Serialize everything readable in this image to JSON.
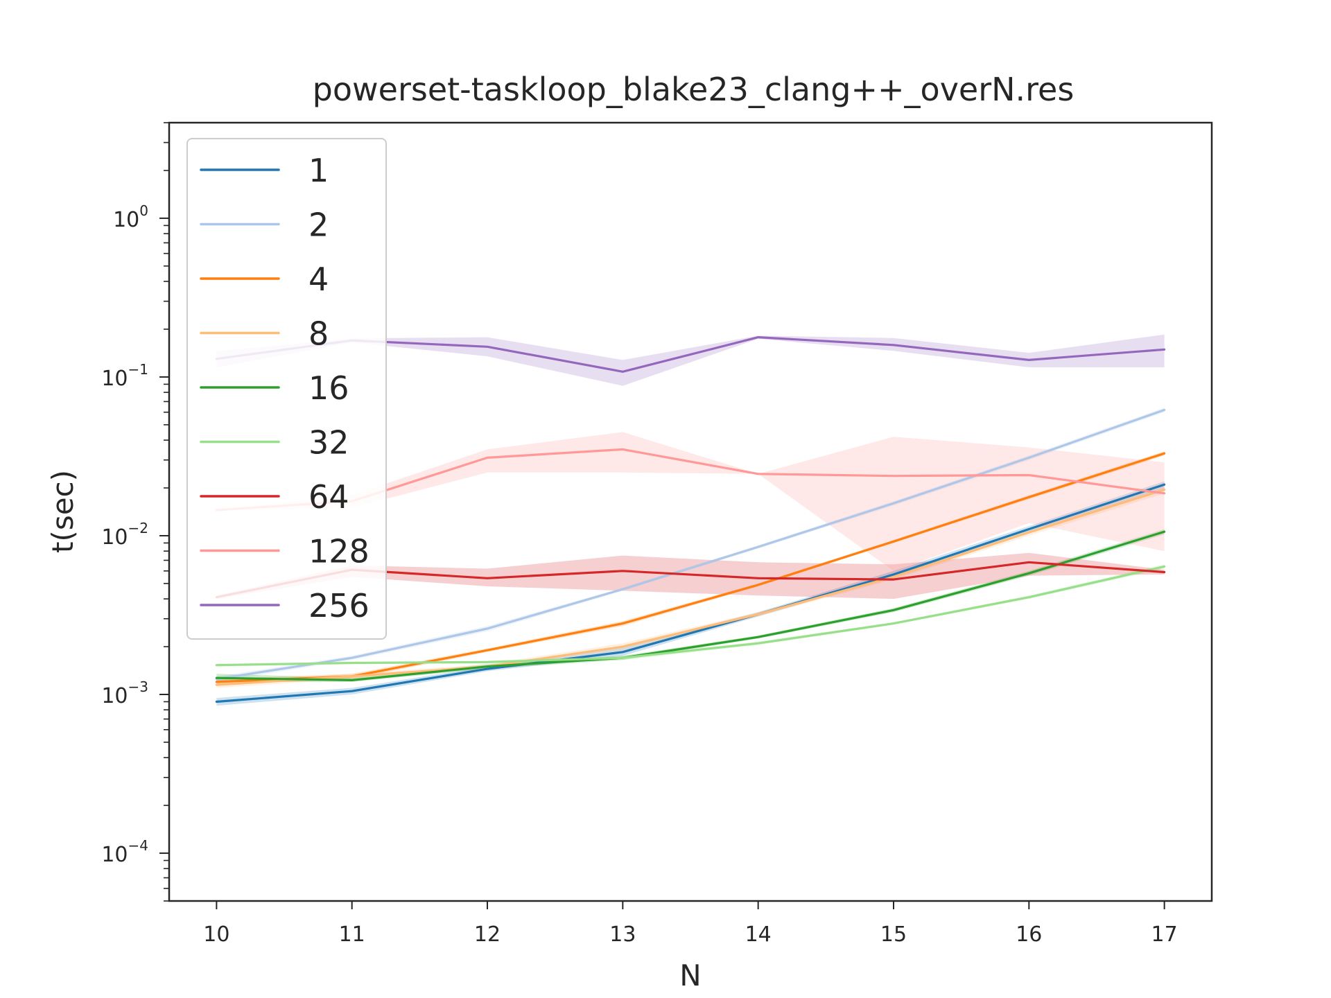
{
  "chart_data": {
    "type": "line",
    "title": "powerset-taskloop_blake23_clang++_overN.res",
    "xlabel": "N",
    "ylabel": "t(sec)",
    "yscale": "log",
    "xlim": [
      9.65,
      17.35
    ],
    "ylim": [
      5e-05,
      4.0
    ],
    "x": [
      10,
      11,
      12,
      13,
      14,
      15,
      16,
      17
    ],
    "x_ticks": [
      "10",
      "11",
      "12",
      "13",
      "14",
      "15",
      "16",
      "17"
    ],
    "y_ticks": [
      {
        "value": 0.0001,
        "base": "10",
        "exp": "−4"
      },
      {
        "value": 0.001,
        "base": "10",
        "exp": "−3"
      },
      {
        "value": 0.01,
        "base": "10",
        "exp": "−2"
      },
      {
        "value": 0.1,
        "base": "10",
        "exp": "−1"
      },
      {
        "value": 1,
        "base": "10",
        "exp": "0"
      }
    ],
    "grid": false,
    "legend_position": "upper-left",
    "series": [
      {
        "name": "1",
        "color": "#1f77b4",
        "values": [
          0.0009,
          0.00105,
          0.00145,
          0.00185,
          0.0032,
          0.0057,
          0.011,
          0.021
        ],
        "lower": [
          0.00085,
          0.001,
          0.0014,
          0.00175,
          0.0031,
          0.0055,
          0.0105,
          0.0195
        ],
        "upper": [
          0.00095,
          0.0011,
          0.0015,
          0.002,
          0.0033,
          0.006,
          0.0115,
          0.022
        ]
      },
      {
        "name": "2",
        "color": "#aec7e8",
        "values": [
          0.00125,
          0.0017,
          0.0026,
          0.0046,
          0.0085,
          0.016,
          0.031,
          0.062
        ],
        "lower": [
          0.0012,
          0.00165,
          0.0025,
          0.0045,
          0.0083,
          0.0155,
          0.03,
          0.06
        ],
        "upper": [
          0.0013,
          0.00175,
          0.0027,
          0.0047,
          0.0087,
          0.0165,
          0.032,
          0.064
        ]
      },
      {
        "name": "4",
        "color": "#ff7f0e",
        "values": [
          0.0012,
          0.0013,
          0.0019,
          0.0028,
          0.0049,
          0.0092,
          0.0175,
          0.033
        ],
        "lower": [
          0.00115,
          0.00125,
          0.00185,
          0.0027,
          0.0048,
          0.009,
          0.017,
          0.032
        ],
        "upper": [
          0.00125,
          0.00135,
          0.00195,
          0.0029,
          0.005,
          0.0094,
          0.018,
          0.034
        ]
      },
      {
        "name": "8",
        "color": "#ffbb78",
        "values": [
          0.00115,
          0.0013,
          0.0015,
          0.002,
          0.0032,
          0.0055,
          0.0105,
          0.0195
        ],
        "lower": [
          0.0011,
          0.00125,
          0.00145,
          0.0019,
          0.0031,
          0.0053,
          0.01,
          0.0185
        ],
        "upper": [
          0.0012,
          0.00135,
          0.00155,
          0.0021,
          0.0033,
          0.0057,
          0.011,
          0.0205
        ]
      },
      {
        "name": "16",
        "color": "#2ca02c",
        "values": [
          0.00127,
          0.00123,
          0.0015,
          0.0017,
          0.0023,
          0.0034,
          0.0058,
          0.0106
        ],
        "lower": [
          0.0012,
          0.0012,
          0.00145,
          0.00165,
          0.00225,
          0.0033,
          0.0056,
          0.0102
        ],
        "upper": [
          0.00135,
          0.00127,
          0.00155,
          0.00175,
          0.00235,
          0.0035,
          0.006,
          0.011
        ]
      },
      {
        "name": "32",
        "color": "#98df8a",
        "values": [
          0.00153,
          0.00158,
          0.0016,
          0.0017,
          0.0021,
          0.0028,
          0.0041,
          0.0064
        ],
        "lower": [
          0.0015,
          0.00155,
          0.00157,
          0.00165,
          0.00205,
          0.00275,
          0.004,
          0.0062
        ],
        "upper": [
          0.00156,
          0.0016,
          0.00163,
          0.00175,
          0.00215,
          0.00285,
          0.0042,
          0.0066
        ]
      },
      {
        "name": "64",
        "color": "#d62728",
        "values": [
          0.0041,
          0.0061,
          0.0054,
          0.006,
          0.0054,
          0.0053,
          0.0068,
          0.0059
        ],
        "lower": [
          0.004,
          0.0055,
          0.0048,
          0.0045,
          0.0042,
          0.004,
          0.0056,
          0.0057
        ],
        "upper": [
          0.0042,
          0.0065,
          0.0062,
          0.0075,
          0.0068,
          0.0066,
          0.0078,
          0.0061
        ]
      },
      {
        "name": "128",
        "color": "#ff9896",
        "values": [
          0.0145,
          0.0165,
          0.031,
          0.035,
          0.0245,
          0.0238,
          0.0241,
          0.0185
        ],
        "lower": [
          0.0145,
          0.015,
          0.025,
          0.025,
          0.0245,
          0.006,
          0.012,
          0.008
        ],
        "upper": [
          0.0145,
          0.018,
          0.035,
          0.045,
          0.0245,
          0.042,
          0.036,
          0.029
        ]
      },
      {
        "name": "256",
        "color": "#9467bd",
        "values": [
          0.13,
          0.17,
          0.155,
          0.108,
          0.178,
          0.159,
          0.128,
          0.149
        ],
        "lower": [
          0.115,
          0.165,
          0.135,
          0.088,
          0.174,
          0.146,
          0.115,
          0.115
        ],
        "upper": [
          0.145,
          0.175,
          0.178,
          0.128,
          0.182,
          0.176,
          0.142,
          0.185
        ]
      }
    ]
  }
}
